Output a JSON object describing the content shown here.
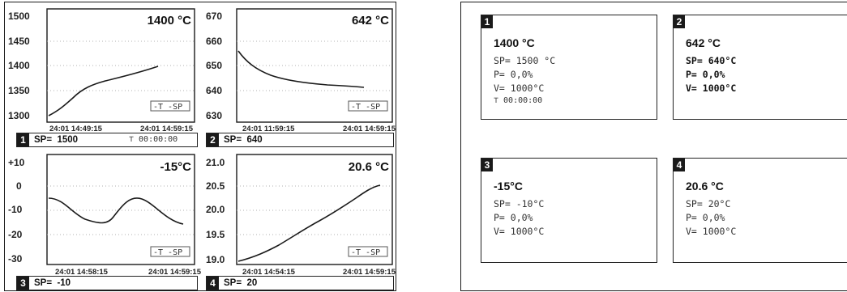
{
  "graph_panels": [
    {
      "number": "1",
      "value": "1400 °C",
      "sp_label": "SP=",
      "sp_value": "1500",
      "timer": "⊤ 00:00:00",
      "legend": "-T -SP",
      "y_ticks": [
        "1500",
        "1450",
        "1400",
        "1350",
        "1300"
      ],
      "x_ticks": [
        "24:01 14:49:15",
        "24:01 14:59:15"
      ]
    },
    {
      "number": "2",
      "value": "642 °C",
      "sp_label": "SP=",
      "sp_value": "640",
      "timer": "",
      "legend": "-T -SP",
      "y_ticks": [
        "670",
        "660",
        "650",
        "640",
        "630"
      ],
      "x_ticks": [
        "24:01 11:59:15",
        "24:01 14:59:15"
      ]
    },
    {
      "number": "3",
      "value": "-15°C",
      "sp_label": "SP=",
      "sp_value": "-10",
      "timer": "",
      "legend": "-T -SP",
      "y_ticks": [
        "+10",
        "0",
        "-10",
        "-20",
        "-30"
      ],
      "x_ticks": [
        "24:01 14:58:15",
        "24:01 14:59:15"
      ]
    },
    {
      "number": "4",
      "value": "20.6 °C",
      "sp_label": "SP=",
      "sp_value": "20",
      "timer": "",
      "legend": "-T -SP",
      "y_ticks": [
        "21.0",
        "20.5",
        "20.0",
        "19.5",
        "19.0"
      ],
      "x_ticks": [
        "24:01 14:54:15",
        "24:01 14:59:15"
      ]
    }
  ],
  "value_panels": [
    {
      "number": "1",
      "title": "1400 °C",
      "sp": "SP= 1500 °C",
      "p": "P= 0,0%",
      "v": "V= 1000°C",
      "timer": "⊤ 00:00:00"
    },
    {
      "number": "2",
      "title": "642 °C",
      "sp": "SP= 640°C",
      "p": "P= 0,0%",
      "v": "V= 1000°C",
      "timer": ""
    },
    {
      "number": "3",
      "title": "-15°C",
      "sp": "SP= -10°C",
      "p": "P= 0,0%",
      "v": "V= 1000°C",
      "timer": ""
    },
    {
      "number": "4",
      "title": "20.6 °C",
      "sp": "SP= 20°C",
      "p": "P= 0,0%",
      "v": "V= 1000°C",
      "timer": ""
    }
  ],
  "colors": {
    "frame": "#1a1a1a",
    "trace": "#1a1a1a",
    "grid": "#b0b0b0"
  }
}
